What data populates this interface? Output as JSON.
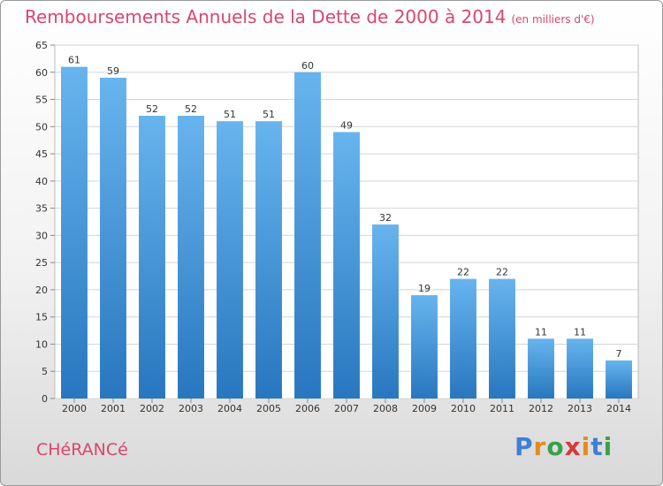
{
  "title": "Remboursements Annuels de la Dette de 2000 à 2014",
  "unit_note": "(en milliers d'€)",
  "commune": "CHéRANCé",
  "brand": {
    "letters": [
      "P",
      "r",
      "o",
      "x",
      "i",
      "t",
      "i"
    ],
    "colors": [
      "#3f7fd6",
      "#e48b1d",
      "#3aa14a",
      "#d63a3a",
      "#e48b1d",
      "#3f7fd6",
      "#3aa14a"
    ]
  },
  "colors": {
    "bar_top": "#67b4ee",
    "bar_bottom": "#2877bf",
    "accent": "#d9466f"
  },
  "chart_data": {
    "type": "bar",
    "title": "Remboursements Annuels de la Dette de 2000 à 2014",
    "categories": [
      "2000",
      "2001",
      "2002",
      "2003",
      "2004",
      "2005",
      "2006",
      "2007",
      "2008",
      "2009",
      "2010",
      "2011",
      "2012",
      "2013",
      "2014"
    ],
    "values": [
      61,
      59,
      52,
      52,
      51,
      51,
      60,
      49,
      32,
      19,
      22,
      22,
      11,
      11,
      7
    ],
    "ylim": [
      0,
      65
    ],
    "yticks": [
      0,
      5,
      10,
      15,
      20,
      25,
      30,
      35,
      40,
      45,
      50,
      55,
      60,
      65
    ],
    "xlabel": "",
    "ylabel": "",
    "grid": true,
    "data_labels": true
  }
}
